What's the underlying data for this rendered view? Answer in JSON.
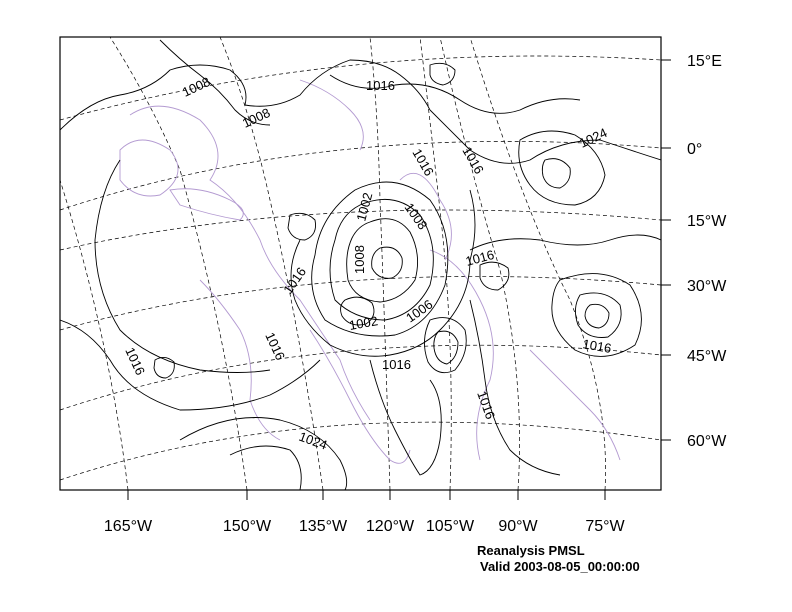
{
  "caption": {
    "title": "Reanalysis PMSL",
    "valid": "Valid 2003-08-05_00:00:00"
  },
  "axes": {
    "bottom_labels": [
      "165°W",
      "150°W",
      "135°W",
      "120°W",
      "105°W",
      "90°W",
      "75°W"
    ],
    "right_labels": [
      "15°E",
      "0°",
      "15°W",
      "30°W",
      "45°W",
      "60°W"
    ]
  },
  "contour_labels": [
    "1008",
    "1008",
    "1016",
    "1016",
    "1016",
    "1024",
    "1002",
    "1008",
    "1008",
    "1016",
    "1016",
    "1006",
    "1002",
    "1016",
    "1016",
    "1016",
    "1016",
    "1016",
    "1024"
  ],
  "colors": {
    "contour": "#000000",
    "coastline": "#b39ad1",
    "graticule": "#000000",
    "frame": "#000000"
  }
}
